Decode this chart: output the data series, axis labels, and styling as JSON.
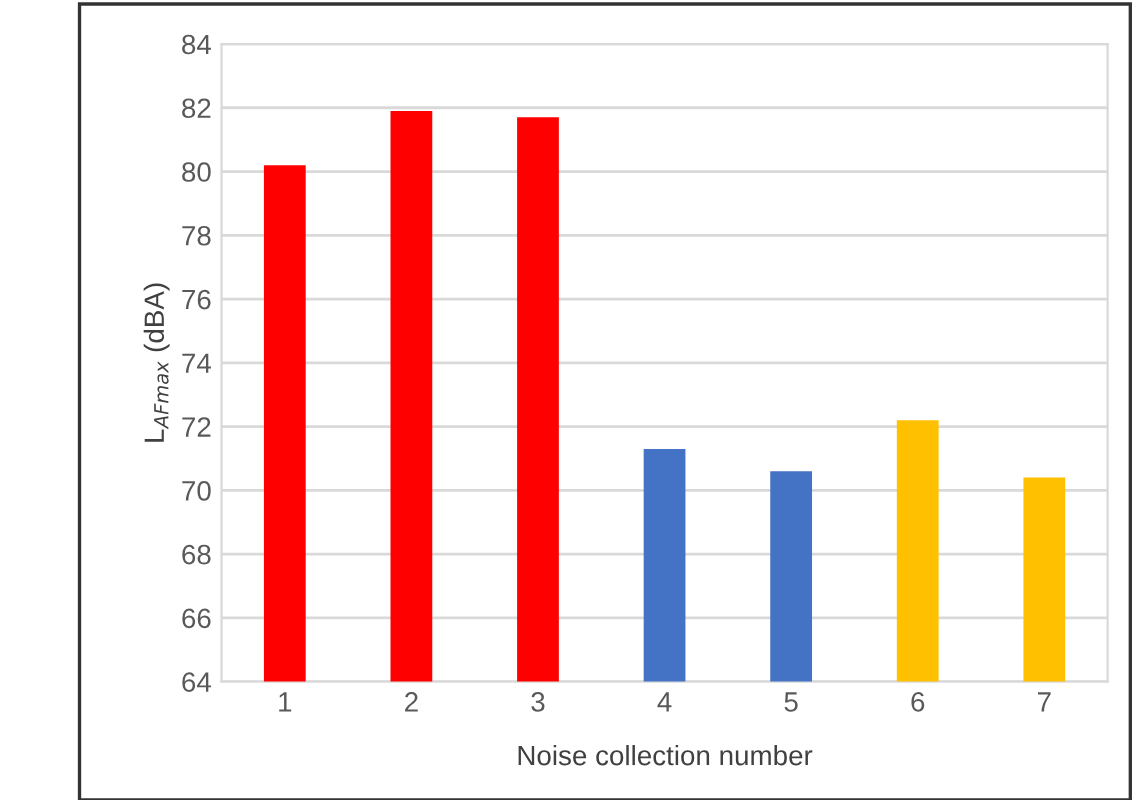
{
  "chart_data": {
    "type": "bar",
    "xlabel": "Noise collection number",
    "ylabel": "L$_{AFmax}$ (dBA)",
    "categories": [
      "1",
      "2",
      "3",
      "4",
      "5",
      "6",
      "7"
    ],
    "values": [
      80.2,
      81.9,
      81.7,
      71.3,
      70.6,
      72.2,
      70.4
    ],
    "colors": [
      "#ff0000",
      "#ff0000",
      "#ff0000",
      "#4472c4",
      "#4472c4",
      "#ffc000",
      "#ffc000"
    ],
    "ylim": [
      64,
      84
    ],
    "yticks": [
      64,
      66,
      68,
      70,
      72,
      74,
      76,
      78,
      80,
      82,
      84
    ],
    "grid": "y"
  }
}
